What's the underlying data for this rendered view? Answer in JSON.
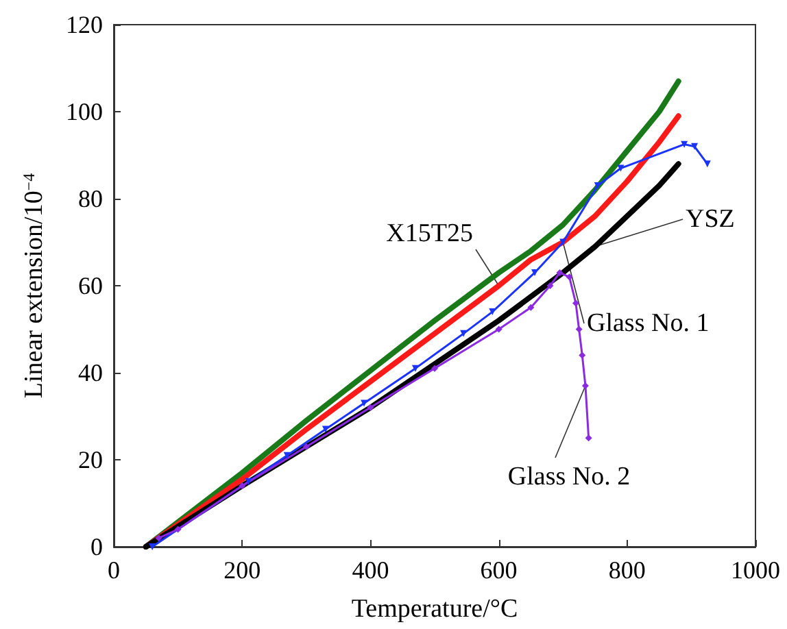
{
  "chart_data": {
    "type": "line",
    "xlabel": "Temperature/°C",
    "ylabel": "Linear extension/10$^{−4}$",
    "xlim": [
      0,
      1000
    ],
    "xticks": [
      0,
      200,
      400,
      600,
      800,
      1000
    ],
    "ylim": [
      0,
      120
    ],
    "yticks": [
      0,
      20,
      40,
      60,
      80,
      100,
      120
    ],
    "grid": false,
    "legend": false,
    "series": [
      {
        "color": "#1a7a1a",
        "marker": "none",
        "x": [
          50,
          200,
          300,
          400,
          500,
          600,
          650,
          700,
          750,
          800,
          850,
          880
        ],
        "values": [
          0,
          17,
          29,
          40.5,
          52,
          63,
          68,
          74,
          82,
          91,
          100,
          107
        ]
      },
      {
        "name": "X15T25",
        "color": "#ff1a1a",
        "marker": "none",
        "x": [
          50,
          200,
          300,
          400,
          500,
          600,
          650,
          700,
          750,
          800,
          850,
          880
        ],
        "values": [
          0,
          15.5,
          27,
          38,
          49,
          60,
          66,
          70,
          76,
          84,
          93,
          99
        ]
      },
      {
        "name": "YSZ",
        "color": "#000000",
        "marker": "none",
        "x": [
          50,
          200,
          300,
          400,
          500,
          600,
          700,
          750,
          800,
          850,
          880
        ],
        "values": [
          0,
          14,
          23,
          32,
          42,
          52,
          63,
          69,
          76,
          83,
          88
        ]
      },
      {
        "name": "Glass No. 1",
        "color": "#1a33ff",
        "marker": "triangle",
        "x": [
          60,
          210,
          270,
          330,
          390,
          470,
          545,
          590,
          656,
          700,
          754,
          790,
          889,
          905,
          925
        ],
        "values": [
          0,
          15,
          21,
          27,
          33,
          41,
          49,
          54,
          63,
          70,
          83,
          87,
          92.5,
          92,
          88
        ]
      },
      {
        "name": "Glass No. 2",
        "color": "#8a2be2",
        "marker": "diamond",
        "x": [
          70,
          100,
          200,
          300,
          400,
          500,
          600,
          650,
          680,
          695,
          710,
          720,
          725,
          730,
          735,
          740
        ],
        "values": [
          2,
          4,
          14,
          23,
          32,
          41,
          50,
          55,
          60,
          63,
          62,
          56,
          50,
          44,
          37,
          25
        ]
      }
    ]
  }
}
